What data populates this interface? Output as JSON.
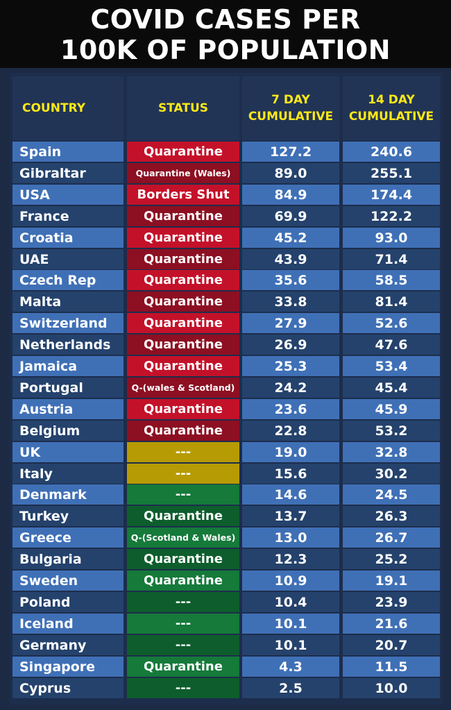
{
  "title_line1": "COVID CASES PER",
  "title_line2": "100K OF POPULATION",
  "colors": {
    "header_text": "#ffe817",
    "row_light": "#3f70b6",
    "row_dark": "#24426c",
    "status_red": "#c4112a",
    "status_dark_red": "#8d0f22",
    "status_yellow": "#b69b05",
    "status_green": "#157a3a",
    "status_dark_green": "#0d5e2c"
  },
  "chart_data": {
    "type": "table",
    "columns": [
      "COUNTRY",
      "STATUS",
      "7 DAY\nCUMULATIVE",
      "14 DAY\nCUMULATIVE"
    ],
    "rows": [
      {
        "country": "Spain",
        "status": "Quarantine",
        "status_color": "red",
        "seven_day": "127.2",
        "fourteen_day": "240.6"
      },
      {
        "country": "Gibraltar",
        "status": "Quarantine (Wales)",
        "status_color": "red",
        "seven_day": "89.0",
        "fourteen_day": "255.1"
      },
      {
        "country": "USA",
        "status": "Borders Shut",
        "status_color": "red",
        "seven_day": "84.9",
        "fourteen_day": "174.4"
      },
      {
        "country": "France",
        "status": "Quarantine",
        "status_color": "red",
        "seven_day": "69.9",
        "fourteen_day": "122.2"
      },
      {
        "country": "Croatia",
        "status": "Quarantine",
        "status_color": "red",
        "seven_day": "45.2",
        "fourteen_day": "93.0"
      },
      {
        "country": "UAE",
        "status": "Quarantine",
        "status_color": "red",
        "seven_day": "43.9",
        "fourteen_day": "71.4"
      },
      {
        "country": "Czech Rep",
        "status": "Quarantine",
        "status_color": "red",
        "seven_day": "35.6",
        "fourteen_day": "58.5"
      },
      {
        "country": "Malta",
        "status": "Quarantine",
        "status_color": "red",
        "seven_day": "33.8",
        "fourteen_day": "81.4"
      },
      {
        "country": "Switzerland",
        "status": "Quarantine",
        "status_color": "red",
        "seven_day": "27.9",
        "fourteen_day": "52.6"
      },
      {
        "country": "Netherlands",
        "status": "Quarantine",
        "status_color": "red",
        "seven_day": "26.9",
        "fourteen_day": "47.6"
      },
      {
        "country": "Jamaica",
        "status": "Quarantine",
        "status_color": "red",
        "seven_day": "25.3",
        "fourteen_day": "53.4"
      },
      {
        "country": "Portugal",
        "status": "Q-(wales & Scotland)",
        "status_color": "red",
        "seven_day": "24.2",
        "fourteen_day": "45.4"
      },
      {
        "country": "Austria",
        "status": "Quarantine",
        "status_color": "red",
        "seven_day": "23.6",
        "fourteen_day": "45.9"
      },
      {
        "country": "Belgium",
        "status": "Quarantine",
        "status_color": "red",
        "seven_day": "22.8",
        "fourteen_day": "53.2"
      },
      {
        "country": "UK",
        "status": "---",
        "status_color": "yellow",
        "seven_day": "19.0",
        "fourteen_day": "32.8"
      },
      {
        "country": "Italy",
        "status": "---",
        "status_color": "yellow",
        "seven_day": "15.6",
        "fourteen_day": "30.2"
      },
      {
        "country": "Denmark",
        "status": "---",
        "status_color": "green",
        "seven_day": "14.6",
        "fourteen_day": "24.5"
      },
      {
        "country": "Turkey",
        "status": "Quarantine",
        "status_color": "green",
        "seven_day": "13.7",
        "fourteen_day": "26.3"
      },
      {
        "country": "Greece",
        "status": "Q-(Scotland & Wales)",
        "status_color": "green",
        "seven_day": "13.0",
        "fourteen_day": "26.7"
      },
      {
        "country": "Bulgaria",
        "status": "Quarantine",
        "status_color": "green",
        "seven_day": "12.3",
        "fourteen_day": "25.2"
      },
      {
        "country": "Sweden",
        "status": "Quarantine",
        "status_color": "green",
        "seven_day": "10.9",
        "fourteen_day": "19.1"
      },
      {
        "country": "Poland",
        "status": "---",
        "status_color": "green",
        "seven_day": "10.4",
        "fourteen_day": "23.9"
      },
      {
        "country": "Iceland",
        "status": "---",
        "status_color": "green",
        "seven_day": "10.1",
        "fourteen_day": "21.6"
      },
      {
        "country": "Germany",
        "status": "---",
        "status_color": "green",
        "seven_day": "10.1",
        "fourteen_day": "20.7"
      },
      {
        "country": "Singapore",
        "status": "Quarantine",
        "status_color": "green",
        "seven_day": "4.3",
        "fourteen_day": "11.5"
      },
      {
        "country": "Cyprus",
        "status": "---",
        "status_color": "green",
        "seven_day": "2.5",
        "fourteen_day": "10.0"
      }
    ]
  }
}
